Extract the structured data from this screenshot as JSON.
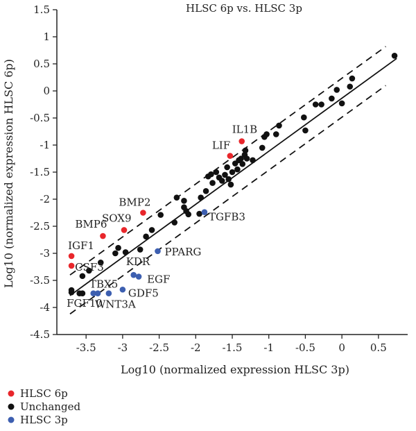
{
  "chart_data": {
    "type": "scatter",
    "title": "HLSC 6p vs. HLSC 3p",
    "xlabel": "Log10 (normalized expression HLSC 3p)",
    "ylabel": "Log10 (normalized expression HLSC 6p)",
    "xlim": [
      -3.9,
      0.9
    ],
    "ylim": [
      -4.5,
      1.5
    ],
    "xticks": [
      "-3.5",
      "-3",
      "-2.5",
      "-2",
      "-1.5",
      "-1",
      "-0.5",
      "0",
      "0.5"
    ],
    "yticks": [
      "1.5",
      "1",
      "0.5",
      "0",
      "-0.5",
      "-1",
      "-1.5",
      "-2",
      "-2.5",
      "-3",
      "-3.5",
      "-4",
      "-4.5"
    ],
    "grid": false,
    "legend_position": "bottom-left",
    "colors": {
      "HLSC 6p": "#e8262b",
      "Unchanged": "#111111",
      "HLSC 3p": "#3d5fb0"
    },
    "series": [
      {
        "name": "HLSC 6p",
        "points": [
          {
            "x": -1.37,
            "y": -0.93,
            "label": "IL1B"
          },
          {
            "x": -1.53,
            "y": -1.2,
            "label": "LIF"
          },
          {
            "x": -2.72,
            "y": -2.25,
            "label": "BMP2"
          },
          {
            "x": -2.98,
            "y": -2.57,
            "label": "SOX9"
          },
          {
            "x": -3.27,
            "y": -2.68,
            "label": "BMP6"
          },
          {
            "x": -3.7,
            "y": -3.05,
            "label": "IGF1"
          },
          {
            "x": -3.7,
            "y": -3.23,
            "label": "CSF3"
          }
        ]
      },
      {
        "name": "Unchanged",
        "points": [
          {
            "x": -3.7,
            "y": -3.72,
            "label": "FGF10"
          },
          {
            "x": -3.7,
            "y": -3.68
          },
          {
            "x": -3.59,
            "y": -3.74
          },
          {
            "x": -3.55,
            "y": -3.74
          },
          {
            "x": -3.55,
            "y": -3.42
          },
          {
            "x": -3.46,
            "y": -3.32
          },
          {
            "x": -3.3,
            "y": -3.17
          },
          {
            "x": -3.1,
            "y": -3.0
          },
          {
            "x": -3.06,
            "y": -2.9
          },
          {
            "x": -2.96,
            "y": -2.98
          },
          {
            "x": -2.76,
            "y": -2.93
          },
          {
            "x": -2.68,
            "y": -2.69
          },
          {
            "x": -2.6,
            "y": -2.57
          },
          {
            "x": -2.48,
            "y": -2.29
          },
          {
            "x": -2.29,
            "y": -2.43
          },
          {
            "x": -2.26,
            "y": -1.97
          },
          {
            "x": -2.16,
            "y": -2.03
          },
          {
            "x": -2.16,
            "y": -2.15
          },
          {
            "x": -2.13,
            "y": -2.22
          },
          {
            "x": -2.1,
            "y": -2.28
          },
          {
            "x": -1.95,
            "y": -2.27
          },
          {
            "x": -1.93,
            "y": -1.97
          },
          {
            "x": -1.86,
            "y": -1.85
          },
          {
            "x": -1.83,
            "y": -1.58
          },
          {
            "x": -1.79,
            "y": -1.54
          },
          {
            "x": -1.77,
            "y": -1.7
          },
          {
            "x": -1.72,
            "y": -1.5
          },
          {
            "x": -1.68,
            "y": -1.6
          },
          {
            "x": -1.64,
            "y": -1.66
          },
          {
            "x": -1.6,
            "y": -1.55
          },
          {
            "x": -1.57,
            "y": -1.41
          },
          {
            "x": -1.55,
            "y": -1.63
          },
          {
            "x": -1.52,
            "y": -1.73
          },
          {
            "x": -1.5,
            "y": -1.5
          },
          {
            "x": -1.46,
            "y": -1.34
          },
          {
            "x": -1.43,
            "y": -1.45
          },
          {
            "x": -1.41,
            "y": -1.28
          },
          {
            "x": -1.38,
            "y": -1.25
          },
          {
            "x": -1.36,
            "y": -1.35
          },
          {
            "x": -1.33,
            "y": -1.18
          },
          {
            "x": -1.32,
            "y": -1.1
          },
          {
            "x": -1.3,
            "y": -1.25
          },
          {
            "x": -1.22,
            "y": -1.28
          },
          {
            "x": -1.09,
            "y": -1.05
          },
          {
            "x": -1.06,
            "y": -0.85
          },
          {
            "x": -1.03,
            "y": -0.8
          },
          {
            "x": -0.9,
            "y": -0.8
          },
          {
            "x": -0.86,
            "y": -0.64
          },
          {
            "x": -0.52,
            "y": -0.49
          },
          {
            "x": -0.5,
            "y": -0.73
          },
          {
            "x": -0.36,
            "y": -0.25
          },
          {
            "x": -0.28,
            "y": -0.25
          },
          {
            "x": -0.14,
            "y": -0.14
          },
          {
            "x": -0.07,
            "y": 0.02
          },
          {
            "x": 0.0,
            "y": -0.23
          },
          {
            "x": 0.11,
            "y": 0.08
          },
          {
            "x": 0.14,
            "y": 0.23
          },
          {
            "x": 0.72,
            "y": 0.65
          }
        ]
      },
      {
        "name": "HLSC 3p",
        "points": [
          {
            "x": -1.88,
            "y": -2.24,
            "label": "TGFB3"
          },
          {
            "x": -2.52,
            "y": -2.96,
            "label": "PPARG"
          },
          {
            "x": -2.85,
            "y": -3.4,
            "label": "KDR"
          },
          {
            "x": -2.78,
            "y": -3.43,
            "label": "EGF"
          },
          {
            "x": -3.0,
            "y": -3.67,
            "label": "GDF5"
          },
          {
            "x": -3.19,
            "y": -3.74,
            "label": "WNT3A"
          },
          {
            "x": -3.34,
            "y": -3.74,
            "label": "TBX5"
          },
          {
            "x": -3.4,
            "y": -3.74
          }
        ]
      }
    ],
    "lines": [
      {
        "style": "solid",
        "x": [
          -3.72,
          0.75
        ],
        "y": [
          -3.78,
          0.6
        ]
      },
      {
        "style": "dashed",
        "x": [
          -3.72,
          0.6
        ],
        "y": [
          -3.4,
          0.82
        ]
      },
      {
        "style": "dashed",
        "x": [
          -3.72,
          0.6
        ],
        "y": [
          -4.12,
          0.1
        ]
      }
    ]
  }
}
